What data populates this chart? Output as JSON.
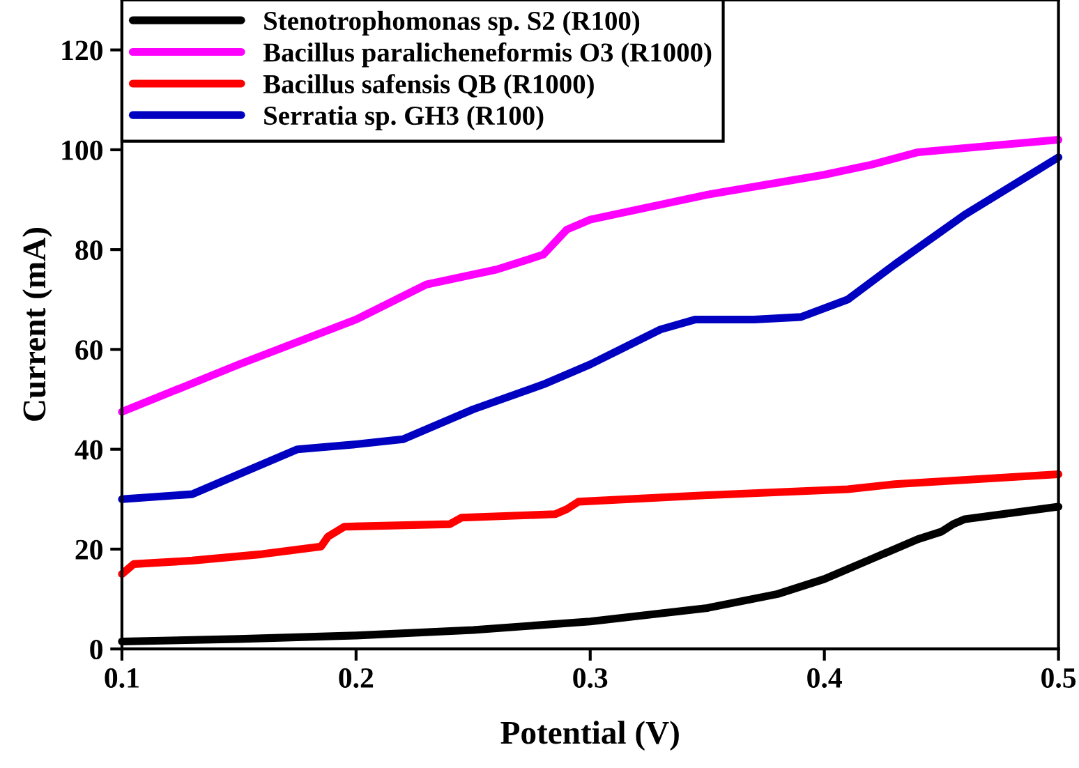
{
  "chart_data": {
    "type": "line",
    "xlabel": "Potential (V)",
    "ylabel": "Current (mA)",
    "xlim": [
      0.1,
      0.5
    ],
    "xticks": [
      0.1,
      0.2,
      0.3,
      0.4,
      0.5
    ],
    "ylim": [
      0,
      130
    ],
    "yticks": [
      0,
      20,
      40,
      60,
      80,
      100,
      120
    ],
    "grid": false,
    "legend": "top left",
    "marker": "none",
    "line_style": "solid",
    "series": [
      {
        "name": "Stenotrophomonas sp. S2 (R100)",
        "color": "#000000",
        "x": [
          0.1,
          0.15,
          0.2,
          0.25,
          0.3,
          0.35,
          0.38,
          0.4,
          0.42,
          0.44,
          0.45,
          0.455,
          0.46,
          0.5
        ],
        "values": [
          1.5,
          2,
          2.7,
          3.8,
          5.5,
          8.2,
          11,
          14,
          18,
          22,
          23.5,
          25,
          26,
          28.5
        ]
      },
      {
        "name": "Bacillus paralicheneformis O3 (R1000)",
        "color": "#ff00ff",
        "x": [
          0.1,
          0.15,
          0.2,
          0.23,
          0.26,
          0.28,
          0.29,
          0.3,
          0.35,
          0.4,
          0.42,
          0.44,
          0.5
        ],
        "values": [
          47.5,
          57,
          66,
          73,
          76,
          79,
          84,
          86,
          91,
          95,
          97,
          99.5,
          102
        ]
      },
      {
        "name": "Bacillus safensis QB (R1000)",
        "color": "#ff0000",
        "x": [
          0.1,
          0.105,
          0.13,
          0.16,
          0.185,
          0.188,
          0.195,
          0.24,
          0.245,
          0.285,
          0.29,
          0.295,
          0.35,
          0.41,
          0.43,
          0.5
        ],
        "values": [
          15,
          17,
          17.7,
          19,
          20.5,
          22.5,
          24.5,
          25,
          26.3,
          27,
          28,
          29.5,
          30.8,
          32,
          33,
          35
        ]
      },
      {
        "name": "Serratia sp. GH3 (R100)",
        "color": "#0000c0",
        "x": [
          0.1,
          0.13,
          0.15,
          0.175,
          0.2,
          0.22,
          0.25,
          0.28,
          0.3,
          0.33,
          0.345,
          0.37,
          0.39,
          0.41,
          0.43,
          0.46,
          0.5
        ],
        "values": [
          30,
          31,
          35,
          40,
          41,
          42,
          48,
          53,
          57,
          64,
          66,
          66,
          66.5,
          70,
          77,
          87,
          98.5
        ]
      }
    ]
  }
}
